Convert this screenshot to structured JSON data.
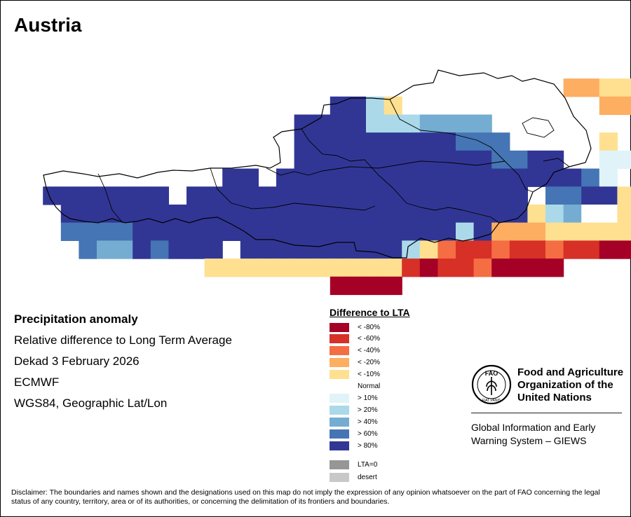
{
  "title": "Austria",
  "info": {
    "line1": "Precipitation anomaly",
    "line2": "Relative difference to Long Term Average",
    "line3": "Dekad 3 February 2026",
    "line4": "ECMWF",
    "line5": "WGS84, Geographic Lat/Lon"
  },
  "legend": {
    "title": "Difference to LTA",
    "items": [
      {
        "code": "d80",
        "label": "< -80%",
        "color": "#a50026"
      },
      {
        "code": "d60",
        "label": "< -60%",
        "color": "#d73027"
      },
      {
        "code": "d40",
        "label": "< -40%",
        "color": "#f46d43"
      },
      {
        "code": "d20",
        "label": "< -20%",
        "color": "#fdae61"
      },
      {
        "code": "d10",
        "label": "< -10%",
        "color": "#fee090"
      },
      {
        "code": "n",
        "label": "Normal",
        "color": "#ffffff"
      },
      {
        "code": "w10",
        "label": "> 10%",
        "color": "#e0f3f8"
      },
      {
        "code": "w20",
        "label": "> 20%",
        "color": "#abd9e9"
      },
      {
        "code": "w40",
        "label": "> 40%",
        "color": "#74add1"
      },
      {
        "code": "w60",
        "label": "> 60%",
        "color": "#4575b4"
      },
      {
        "code": "w80",
        "label": "> 80%",
        "color": "#313695"
      }
    ],
    "extra": [
      {
        "label": "LTA=0",
        "color": "#969696"
      },
      {
        "label": "desert",
        "color": "#c8c8c8"
      }
    ]
  },
  "fao": {
    "name_line1": "Food and Agriculture",
    "name_line2": "Organization of the",
    "name_line3": "United Nations",
    "giews_line1": "Global Information and Early",
    "giews_line2": "Warning System – GIEWS",
    "logo_text": "FAO",
    "logo_motto": "FIAT PANIS"
  },
  "disclaimer": "Disclaimer: The boundaries and names shown and the designations used on this map do not imply the expression of any opinion whatsoever on the part of FAO concerning the legal status of any country, territory, area or of its authorities, or concerning the delimitation of its frontiers and boundaries.",
  "map_grid": {
    "rows": [
      "............................................",
      "............................................",
      "............................................",
      "...............................DDEE..F......",
      "..................WWQF...........DD...VQ.....",
      "................WWWWQQQRRRR..........JJJ....",
      "................WWWWWWWWWVVV.....E...LSSS..",
      "................WWWWWWWWWWWVVWW..JJJJ......",
      "............WW.WWWWWWWWWWWWWWWWWVJ.E.E.G.F.",
      "..WWWWWWW.WWWWWWWWWWWWWWWWWWW.VVWWEEE.....",
      "...WWWWWWWWWWWWWWWWWWWWWWWWWWFQRNNEDC......",
      "...VVVVWWWWWWWWWWWWWWWWWWQWDDDEEEFECC......",
      "....VRRWVWWW.WWWWWWWWWQFCBBCBBCBBAA.......",
      "...........EEEEEEEEEFEBABBCAAAA..........",
      "..................AAAA........................",
      "............................................"
    ]
  }
}
